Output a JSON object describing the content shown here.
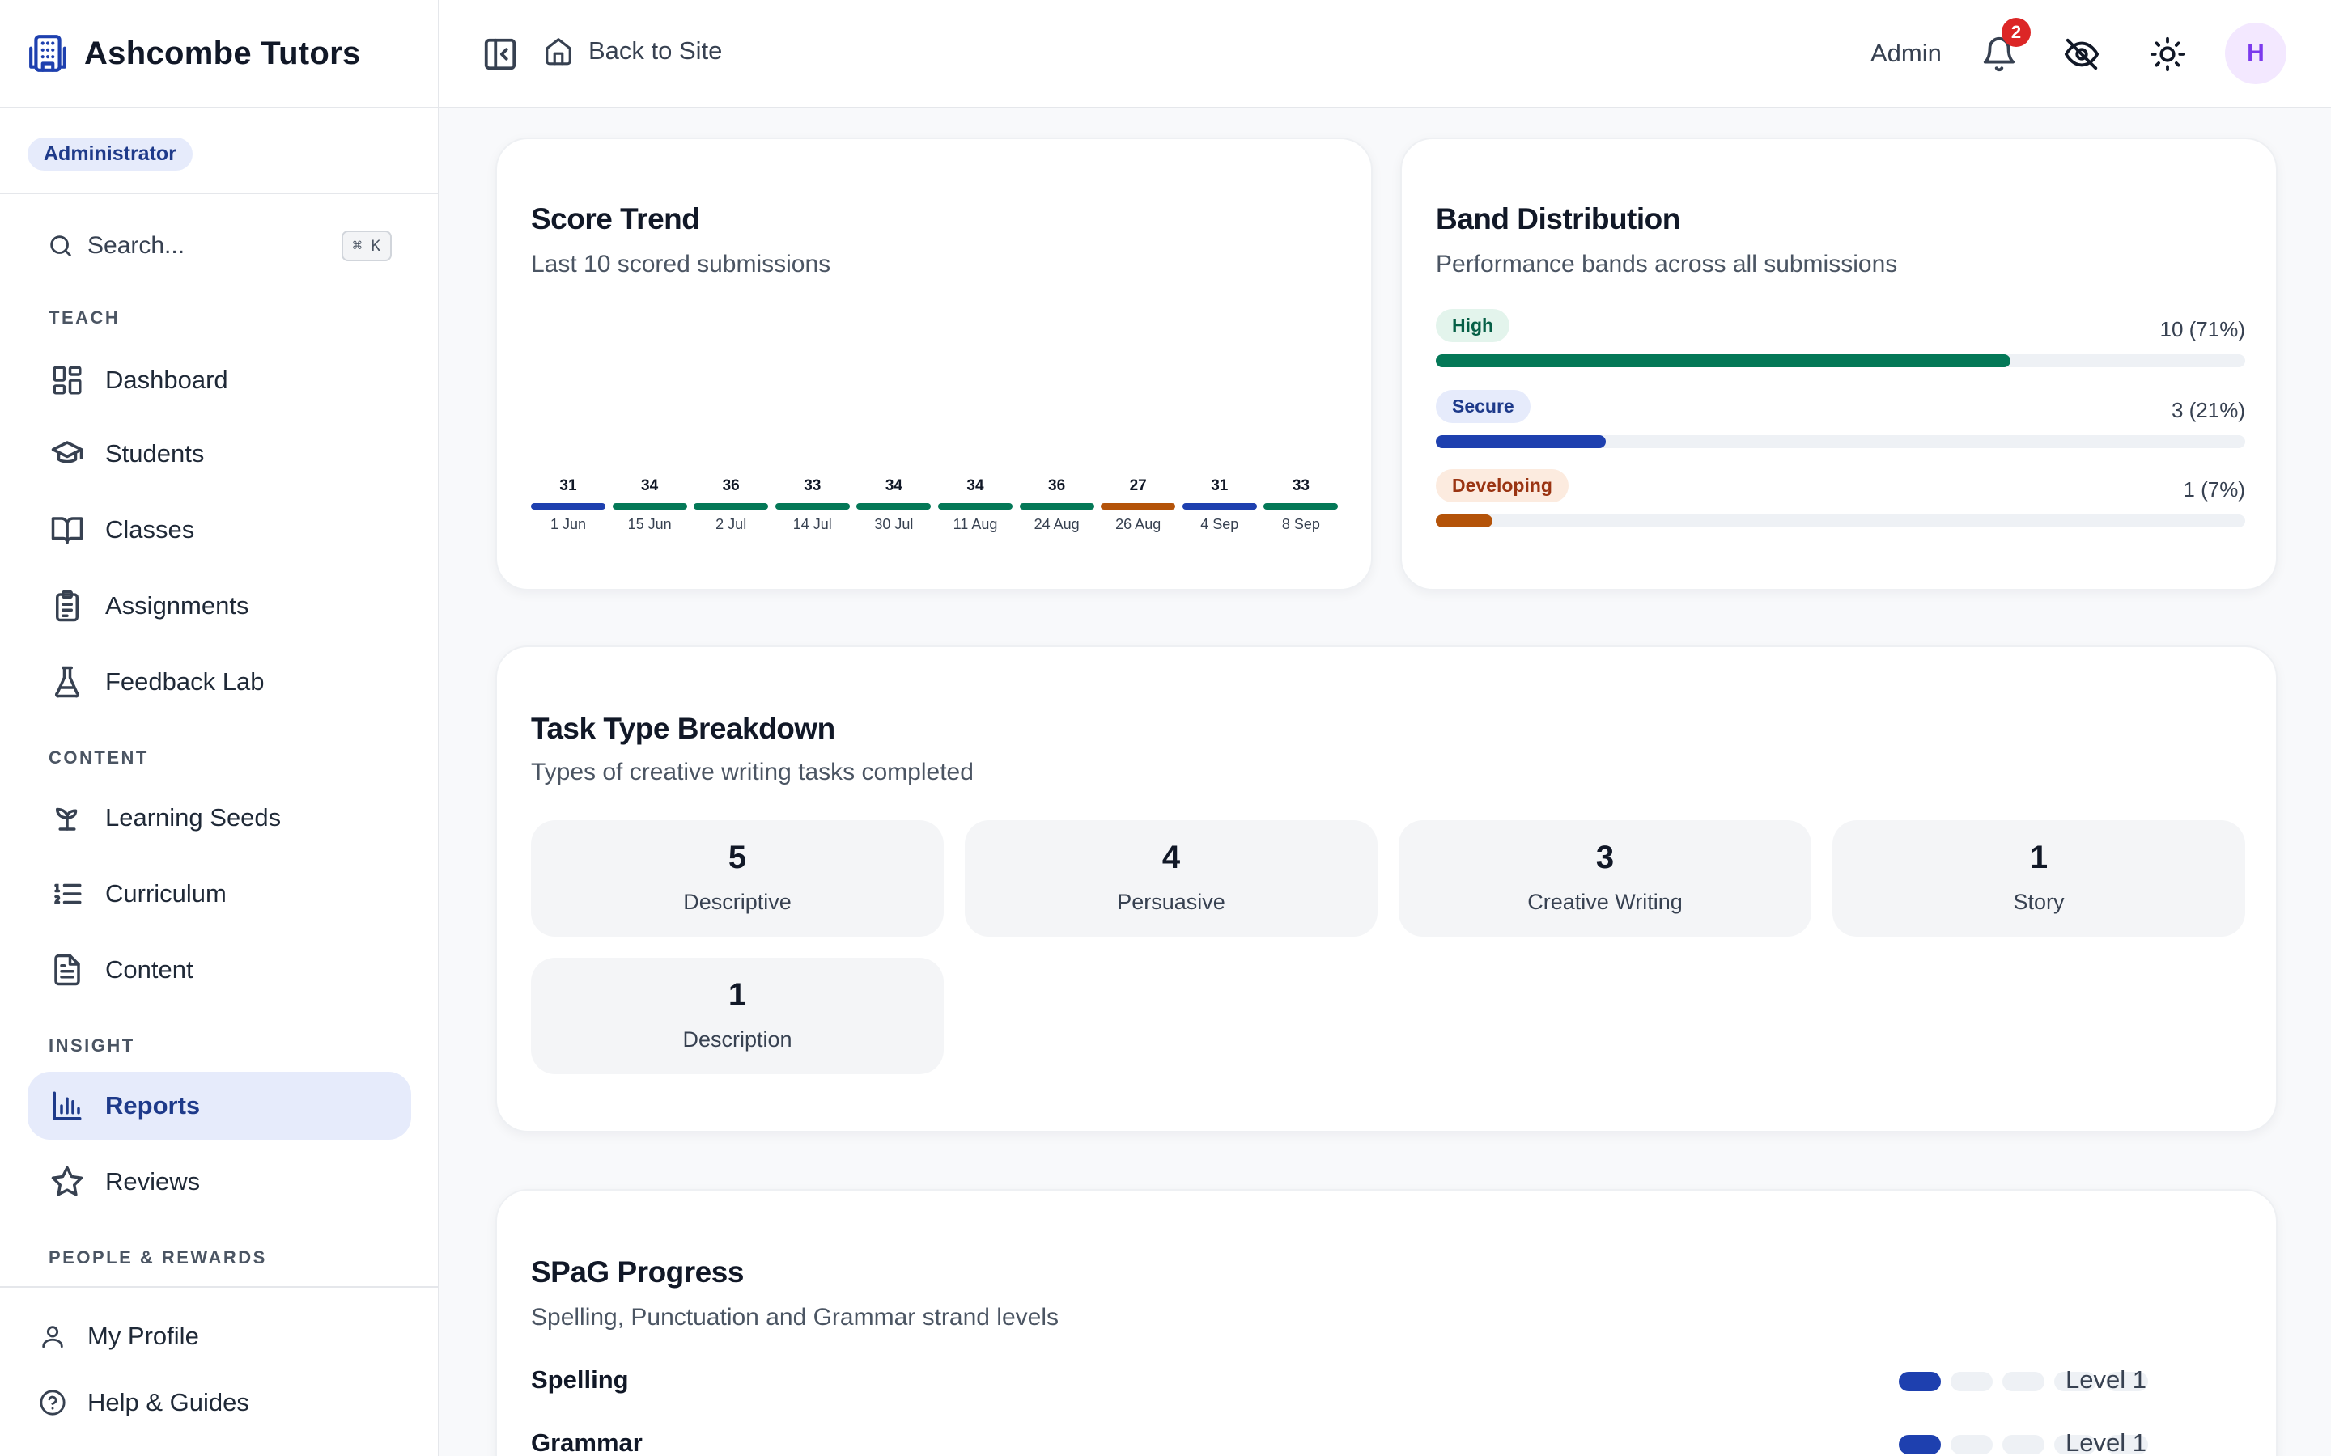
{
  "app": {
    "name": "Ashcombe Tutors",
    "role": "Administrator"
  },
  "search": {
    "placeholder": "Search...",
    "shortcut": "⌘ K"
  },
  "sidebar": {
    "sections": [
      {
        "label": "TEACH"
      },
      {
        "label": "CONTENT"
      },
      {
        "label": "INSIGHT"
      },
      {
        "label": "PEOPLE & REWARDS"
      }
    ],
    "items": [
      {
        "label": "Dashboard",
        "icon": "dashboard-icon"
      },
      {
        "label": "Students",
        "icon": "graduation-cap-icon"
      },
      {
        "label": "Classes",
        "icon": "book-open-icon"
      },
      {
        "label": "Assignments",
        "icon": "clipboard-icon"
      },
      {
        "label": "Feedback Lab",
        "icon": "flask-icon"
      },
      {
        "label": "Learning Seeds",
        "icon": "sprout-icon"
      },
      {
        "label": "Curriculum",
        "icon": "list-ordered-icon"
      },
      {
        "label": "Content",
        "icon": "file-text-icon"
      },
      {
        "label": "Reports",
        "icon": "bar-chart-icon",
        "active": true
      },
      {
        "label": "Reviews",
        "icon": "star-icon"
      }
    ],
    "bottom": [
      {
        "label": "My Profile",
        "icon": "user-icon"
      },
      {
        "label": "Help & Guides",
        "icon": "help-circle-icon"
      }
    ]
  },
  "topbar": {
    "back_label": "Back to Site",
    "user_label": "Admin",
    "notification_count": "2",
    "avatar_initial": "H"
  },
  "score_trend": {
    "title": "Score Trend",
    "subtitle": "Last 10 scored submissions"
  },
  "band_distribution": {
    "title": "Band Distribution",
    "subtitle": "Performance bands across all submissions",
    "bands": [
      {
        "name": "High",
        "count": "10 (71%)",
        "fraction": 0.71,
        "color": "#047857",
        "pill_bg": "#e3f4ec",
        "pill_fg": "#065f46"
      },
      {
        "name": "Secure",
        "count": "3 (21%)",
        "fraction": 0.21,
        "color": "#1e40af",
        "pill_bg": "#e6ebfb",
        "pill_fg": "#1e3a8a"
      },
      {
        "name": "Developing",
        "count": "1 (7%)",
        "fraction": 0.07,
        "color": "#b45309",
        "pill_bg": "#fcebdf",
        "pill_fg": "#9a3412"
      }
    ]
  },
  "task_breakdown": {
    "title": "Task Type Breakdown",
    "subtitle": "Types of creative writing tasks completed",
    "tasks": [
      {
        "count": "5",
        "label": "Descriptive"
      },
      {
        "count": "4",
        "label": "Persuasive"
      },
      {
        "count": "3",
        "label": "Creative Writing"
      },
      {
        "count": "1",
        "label": "Story"
      },
      {
        "count": "1",
        "label": "Description"
      }
    ]
  },
  "spag": {
    "title": "SPaG Progress",
    "subtitle": "Spelling, Punctuation and Grammar strand levels",
    "strands": [
      {
        "name": "Spelling",
        "level_label": "Level 1",
        "level": 1,
        "max": 5
      },
      {
        "name": "Grammar",
        "level_label": "Level 1",
        "level": 1,
        "max": 5
      }
    ]
  },
  "chart_data": {
    "type": "bar",
    "title": "Score Trend",
    "subtitle": "Last 10 scored submissions",
    "categories": [
      "1 Jun",
      "15 Jun",
      "2 Jul",
      "14 Jul",
      "30 Jul",
      "11 Aug",
      "24 Aug",
      "26 Aug",
      "4 Sep",
      "8 Sep"
    ],
    "values": [
      31,
      34,
      36,
      33,
      34,
      34,
      36,
      27,
      31,
      33
    ],
    "bands": [
      "Secure",
      "High",
      "High",
      "High",
      "High",
      "High",
      "High",
      "Developing",
      "Secure",
      "High"
    ],
    "band_colors": {
      "High": "#047857",
      "Secure": "#1e40af",
      "Developing": "#b45309"
    }
  }
}
